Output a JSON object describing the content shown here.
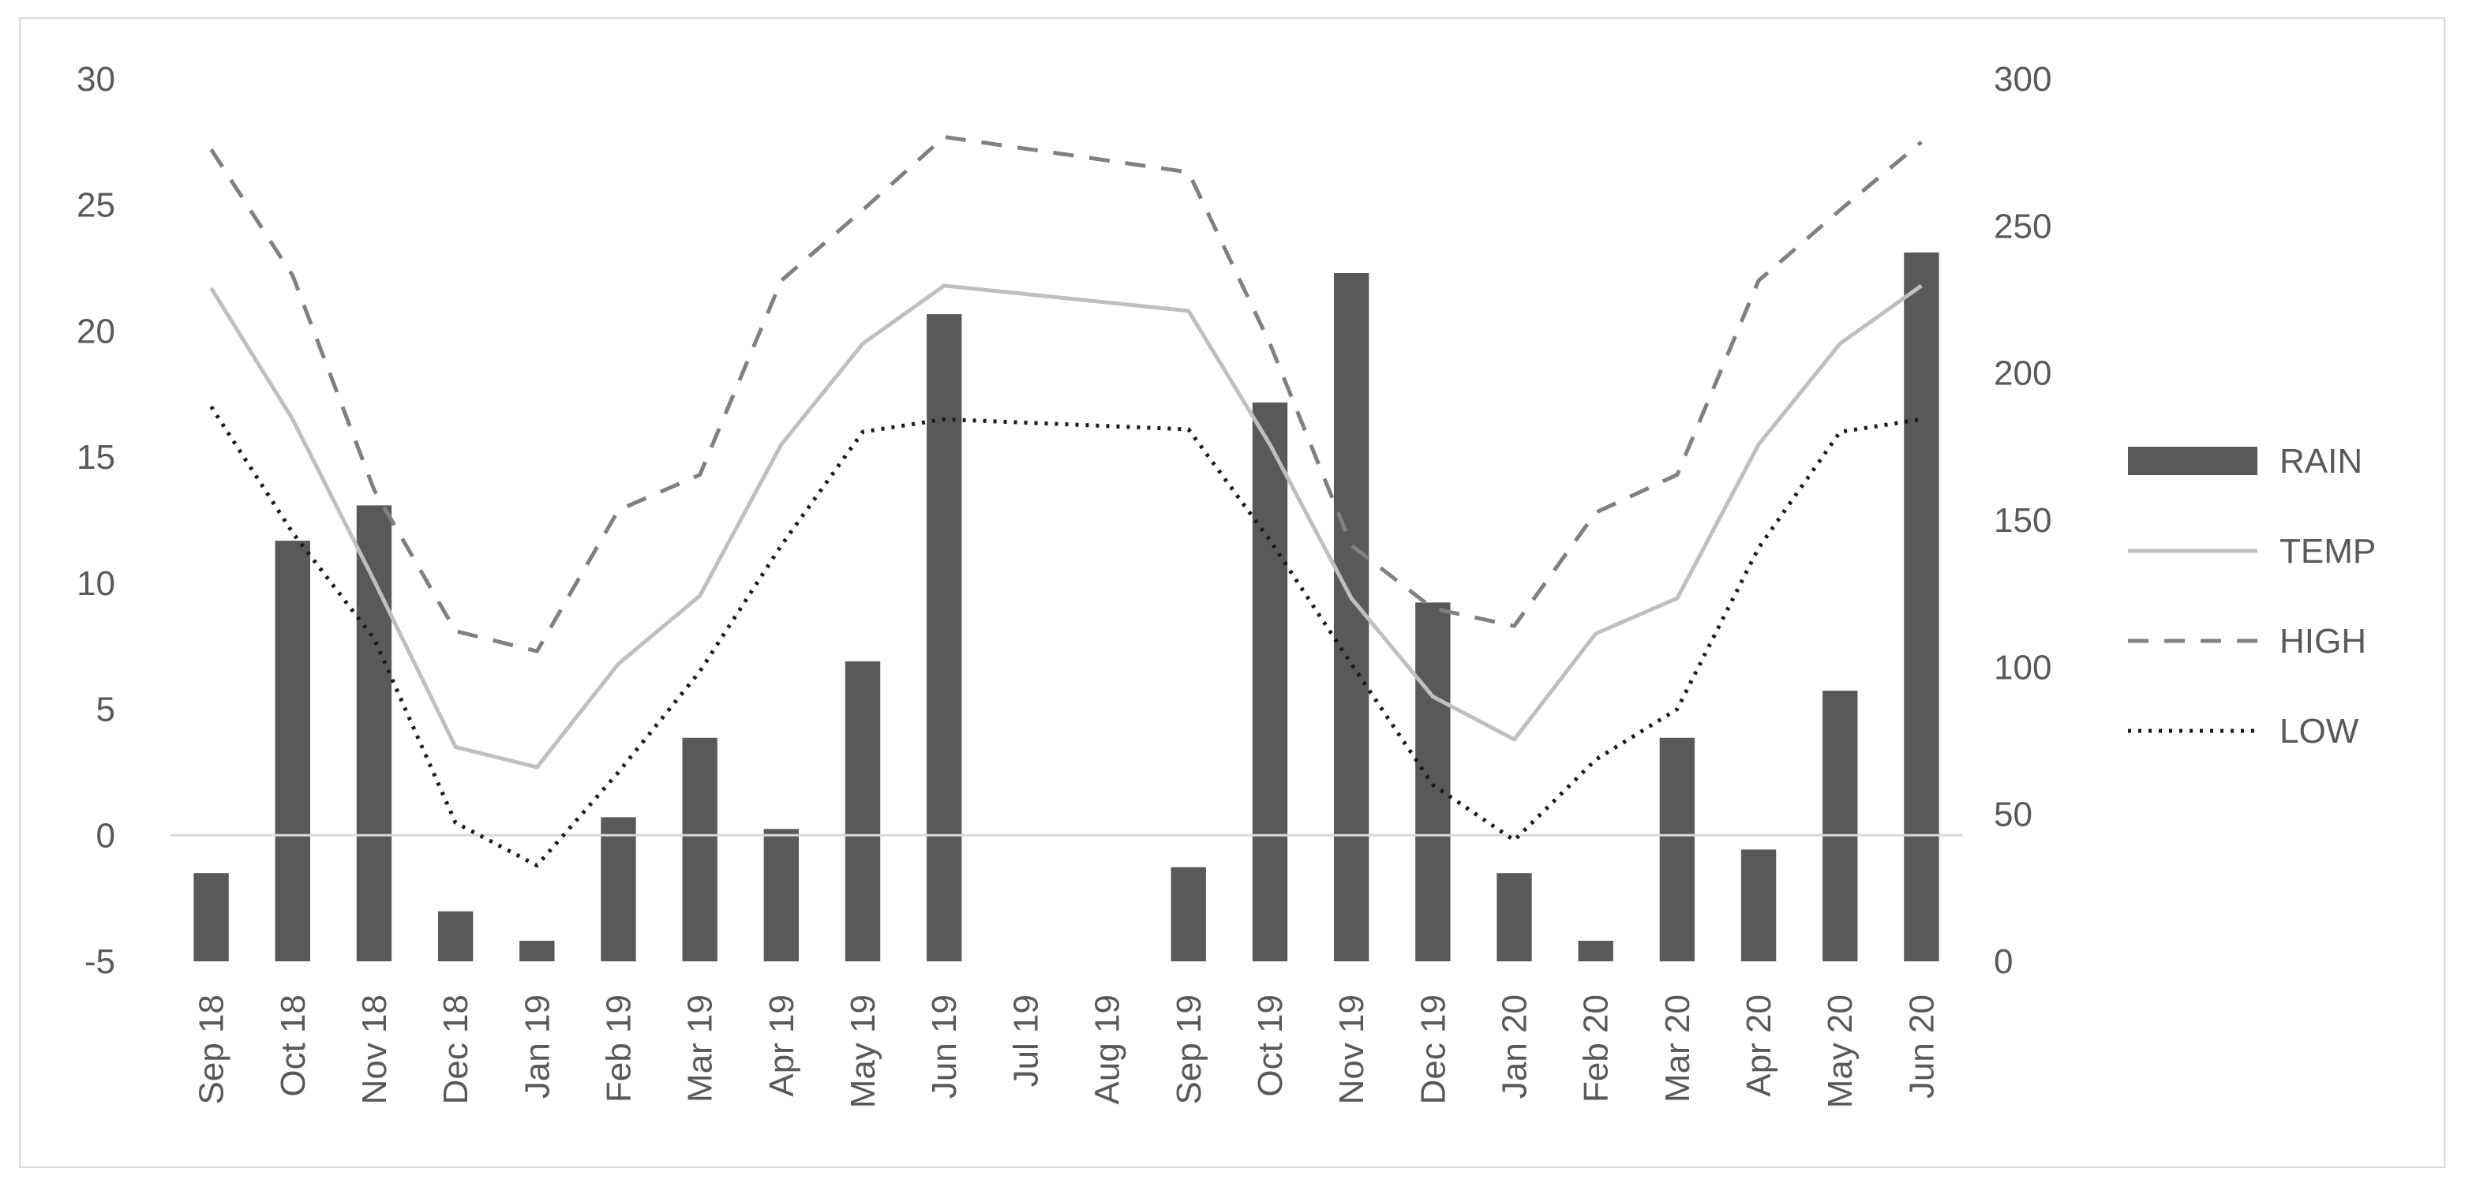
{
  "chart_data": {
    "type": "bar",
    "title": "",
    "xlabel": "",
    "ylabel": "",
    "y2label": "",
    "categories": [
      "Sep 18",
      "Oct 18",
      "Nov 18",
      "Dec 18",
      "Jan 19",
      "Feb 19",
      "Mar 19",
      "Apr 19",
      "May 19",
      "Jun 19",
      "Jul 19",
      "Aug 19",
      "Sep 19",
      "Oct 19",
      "Nov 19",
      "Dec 19",
      "Jan 20",
      "Feb 20",
      "Mar 20",
      "Apr 20",
      "May 20",
      "Jun 20"
    ],
    "ylim": [
      -5,
      30
    ],
    "yticks": [
      "30",
      "25",
      "20",
      "15",
      "10",
      "5",
      "0",
      "-5"
    ],
    "y2lim": [
      0,
      300
    ],
    "y2ticks": [
      "300",
      "250",
      "200",
      "150",
      "100",
      "50",
      "0"
    ],
    "grid": false,
    "legend_position": "right",
    "series": [
      {
        "name": "RAIN",
        "type": "bar",
        "axis": "right",
        "color": "#595959",
        "values": [
          30,
          143,
          155,
          17,
          7,
          49,
          76,
          45,
          102,
          220,
          null,
          null,
          32,
          190,
          234,
          122,
          30,
          7,
          76,
          38,
          92,
          241
        ]
      },
      {
        "name": "TEMP",
        "type": "line",
        "axis": "left",
        "color": "#bfbfbf",
        "dash": "solid",
        "values": [
          21.7,
          16.5,
          10.1,
          3.5,
          2.7,
          6.8,
          9.5,
          15.5,
          19.5,
          21.8,
          null,
          null,
          20.8,
          15.5,
          9.4,
          5.5,
          3.8,
          8.0,
          9.4,
          15.5,
          19.5,
          21.8
        ]
      },
      {
        "name": "HIGH",
        "type": "line",
        "axis": "left",
        "color": "#808080",
        "dash": "dashed",
        "values": [
          27.2,
          22.2,
          13.7,
          8.1,
          7.3,
          12.9,
          14.3,
          22.0,
          24.8,
          27.7,
          null,
          null,
          26.3,
          19.5,
          11.5,
          9.0,
          8.3,
          12.8,
          14.3,
          22.0,
          24.8,
          27.5
        ]
      },
      {
        "name": "LOW",
        "type": "line",
        "axis": "left",
        "color": "#1a1a1a",
        "dash": "dotted",
        "values": [
          17.0,
          12.0,
          7.8,
          0.5,
          -1.2,
          2.5,
          6.5,
          11.5,
          16.0,
          16.5,
          null,
          null,
          16.1,
          11.7,
          6.8,
          2.0,
          -0.2,
          3.0,
          5.0,
          11.4,
          16.0,
          16.5
        ]
      }
    ]
  }
}
